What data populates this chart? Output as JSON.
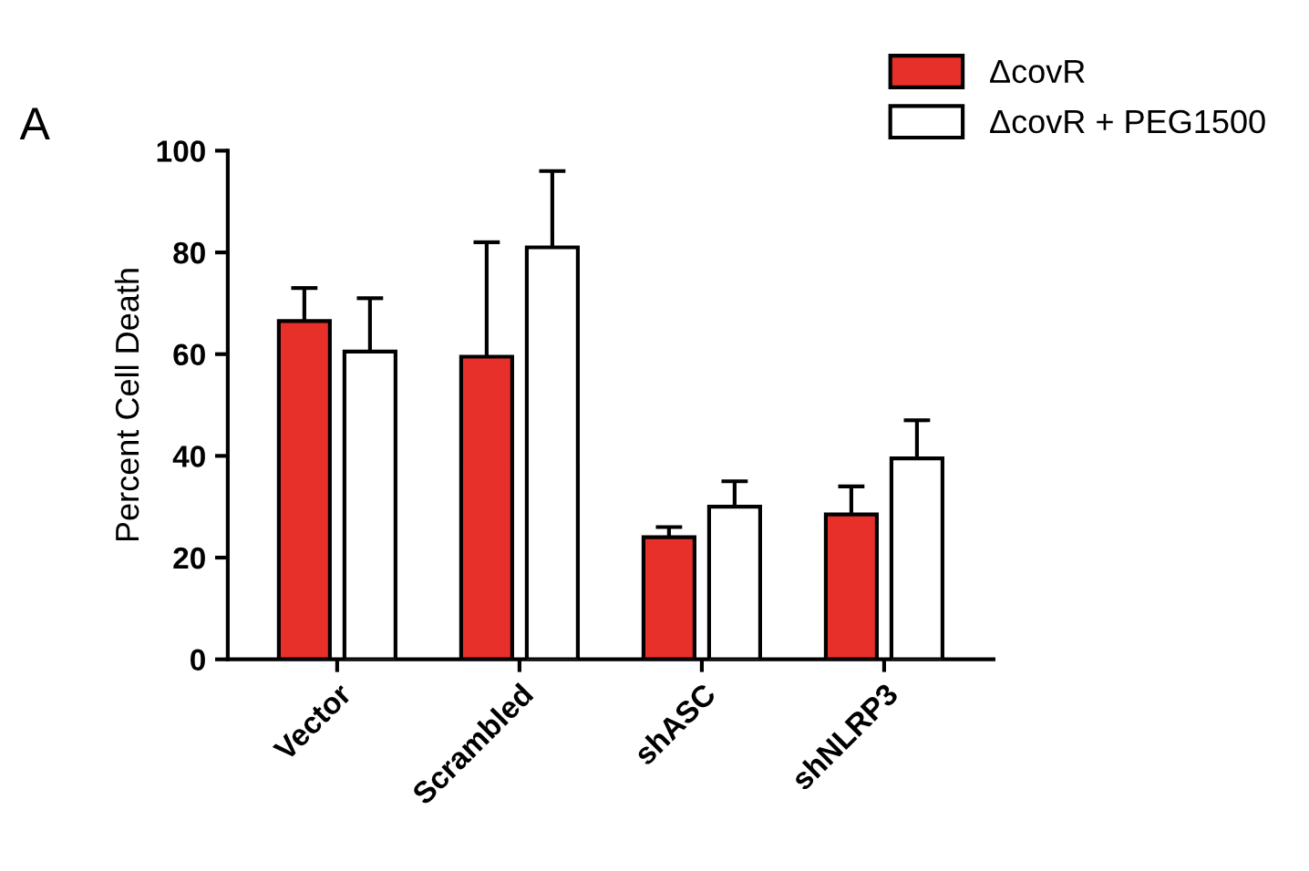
{
  "chart_data": {
    "type": "bar",
    "ylabel": "Percent Cell Death",
    "categories": [
      "Vector",
      "Scrambled",
      "shASC",
      "shNLRP3"
    ],
    "series": [
      {
        "name": "ΔcovR",
        "color": "#e8302a",
        "values": [
          66.5,
          59.5,
          24,
          28.5
        ],
        "errors": [
          [
            66.5,
            73
          ],
          [
            59.5,
            82
          ],
          [
            24,
            26
          ],
          [
            28.5,
            34
          ]
        ]
      },
      {
        "name": "ΔcovR + PEG1500",
        "color": "#ffffff",
        "values": [
          60.5,
          81,
          30,
          39.5
        ],
        "errors": [
          [
            60.5,
            71
          ],
          [
            81,
            96
          ],
          [
            30,
            35
          ],
          [
            39.5,
            47
          ]
        ]
      }
    ],
    "ylim": [
      0,
      100
    ],
    "yticks": [
      0,
      20,
      40,
      60,
      80,
      100
    ],
    "grid": false,
    "legend": "top right",
    "annotations": [
      "A"
    ]
  }
}
